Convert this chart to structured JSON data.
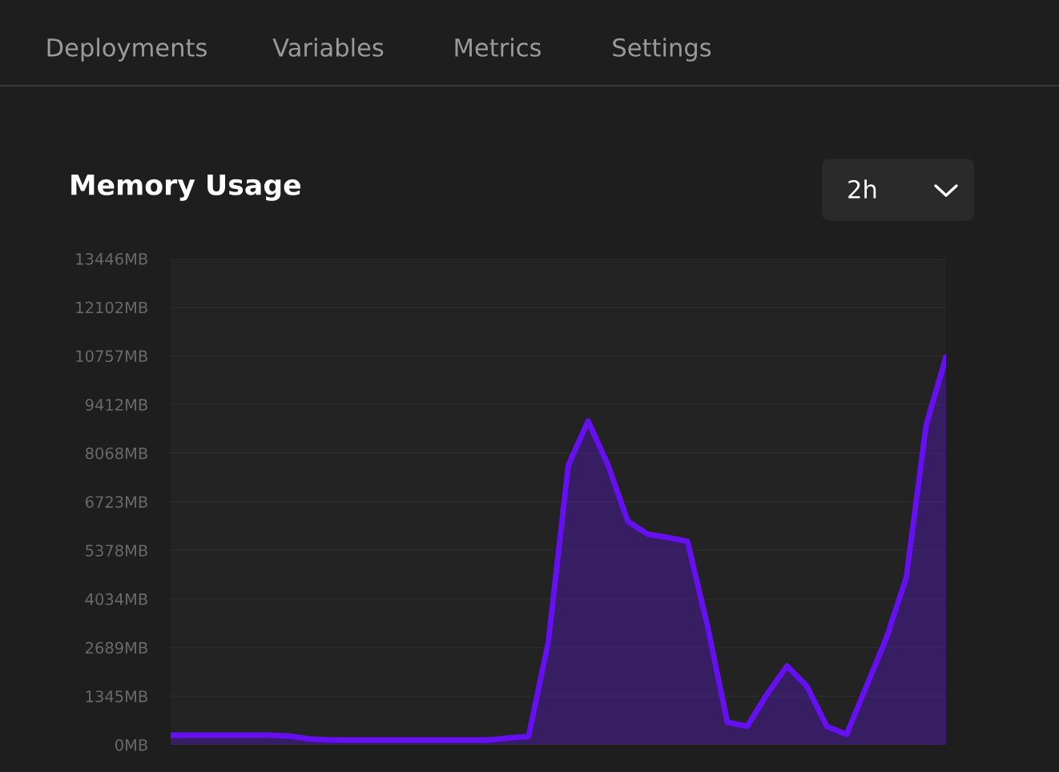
{
  "chart_data": {
    "type": "area",
    "title": "Memory Usage",
    "annotations": [
      "Deployments",
      "Variables",
      "Metrics",
      "Settings",
      "2h"
    ],
    "categories": [
      null,
      null,
      null,
      null,
      null,
      null,
      null,
      null,
      null,
      null,
      null,
      null,
      null,
      null,
      null,
      null,
      null,
      null,
      null,
      null,
      null,
      null,
      null,
      null,
      null,
      null,
      null,
      null,
      null,
      null,
      null,
      null,
      null,
      null,
      null,
      null,
      null,
      null,
      null,
      null
    ],
    "series": [
      {
        "color": "#6610f2",
        "values": [
          267,
          267,
          267,
          267,
          267,
          267,
          240,
          160,
          133,
          133,
          133,
          133,
          133,
          133,
          133,
          133,
          133,
          190,
          230,
          2844,
          7733,
          8955,
          7733,
          6177,
          5822,
          5733,
          5622,
          3289,
          622,
          511,
          1400,
          2178,
          1622,
          511,
          289,
          1622,
          2955,
          4622,
          8844,
          10733
        ]
      }
    ],
    "ylim": [
      0,
      13446
    ],
    "yticks": [
      {
        "value": 0,
        "label": "0MB"
      },
      {
        "value": 1345,
        "label": "1345MB"
      },
      {
        "value": 2689,
        "label": "2689MB"
      },
      {
        "value": 4034,
        "label": "4034MB"
      },
      {
        "value": 5378,
        "label": "5378MB"
      },
      {
        "value": 6723,
        "label": "6723MB"
      },
      {
        "value": 8068,
        "label": "8068MB"
      },
      {
        "value": 9412,
        "label": "9412MB"
      },
      {
        "value": 10757,
        "label": "10757MB"
      },
      {
        "value": 12102,
        "label": "12102MB"
      },
      {
        "value": 13446,
        "label": "13446MB"
      }
    ],
    "grid": "y",
    "tick_labels": "y"
  }
}
